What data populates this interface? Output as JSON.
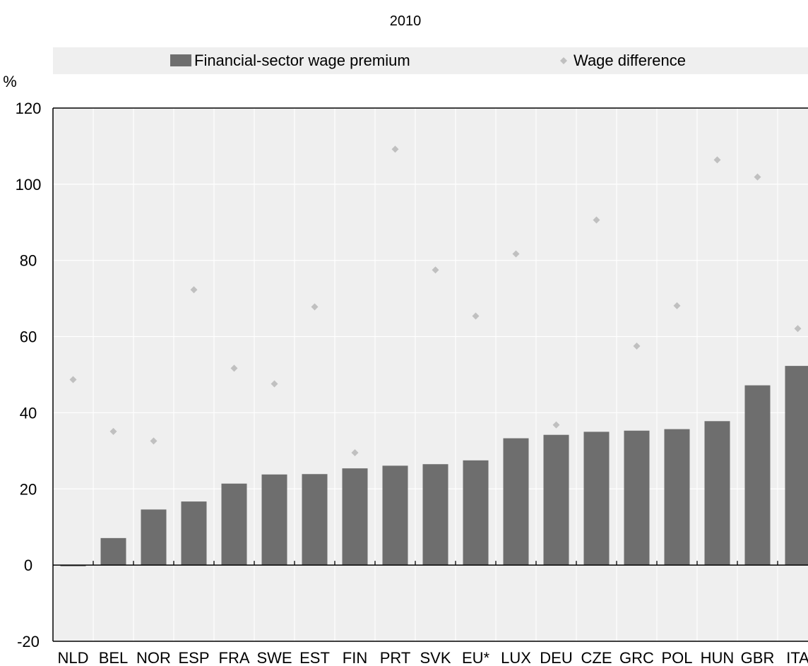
{
  "chart_data": {
    "type": "bar",
    "title": "2010",
    "ylabel": "%",
    "ylim": [
      -20,
      120
    ],
    "yticks": [
      -20,
      0,
      20,
      40,
      60,
      80,
      100,
      120
    ],
    "categories": [
      "NLD",
      "BEL",
      "NOR",
      "ESP",
      "FRA",
      "SWE",
      "EST",
      "FIN",
      "PRT",
      "SVK",
      "EU*",
      "LUX",
      "DEU",
      "CZE",
      "GRC",
      "POL",
      "HUN",
      "GBR",
      "ITA"
    ],
    "series": [
      {
        "name": "Financial-sector wage premium",
        "type": "bar",
        "color": "#6e6e6e",
        "values": [
          -0.3,
          7.1,
          14.6,
          16.7,
          21.4,
          23.8,
          23.9,
          25.4,
          26.1,
          26.5,
          27.5,
          33.3,
          34.2,
          35.0,
          35.3,
          35.7,
          37.8,
          47.2,
          52.3
        ]
      },
      {
        "name": "Wage difference",
        "type": "scatter",
        "color": "#c0c0c0",
        "marker": "diamond",
        "values": [
          48.7,
          35.1,
          32.6,
          72.3,
          51.7,
          47.6,
          67.8,
          29.5,
          109.2,
          77.5,
          65.4,
          81.7,
          36.8,
          90.6,
          57.5,
          68.1,
          106.4,
          101.9,
          62.1
        ]
      }
    ],
    "grid": true,
    "legend_position": "top"
  },
  "colors": {
    "legend_band": "#efefef",
    "plot_background": "#efefef",
    "grid_line": "#ffffff",
    "axis_line": "#000000"
  }
}
